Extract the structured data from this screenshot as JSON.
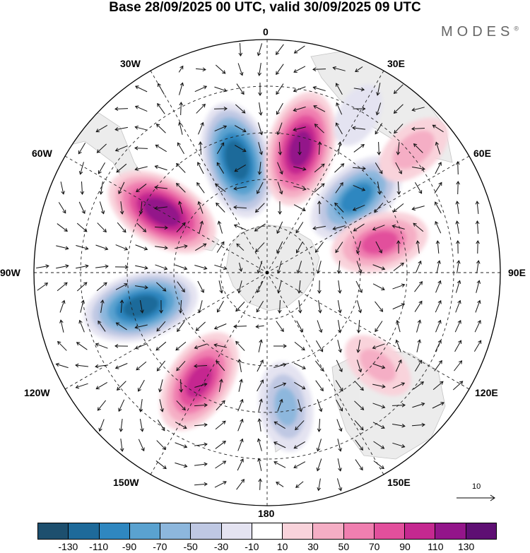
{
  "title": "Base 28/09/2025 00 UTC, valid 30/09/2025 09 UTC",
  "brand": "MODES",
  "brand_mark": "®",
  "longitude_labels": {
    "lon_0": "0",
    "lon_30e": "30E",
    "lon_60e": "60E",
    "lon_90e": "90E",
    "lon_120e": "120E",
    "lon_150e": "150E",
    "lon_180": "180",
    "lon_150w": "150W",
    "lon_120w": "120W",
    "lon_90w": "90W",
    "lon_60w": "60W",
    "lon_30w": "30W"
  },
  "vector_reference": {
    "label": "10"
  },
  "colorbar": {
    "colors": [
      "#1d4f6e",
      "#1e6a9a",
      "#2f87c0",
      "#5aa2d0",
      "#8db7dd",
      "#bfc8e3",
      "#e4e3f1",
      "#ffffff",
      "#f9d3db",
      "#f5aec5",
      "#f07fb0",
      "#e24f9c",
      "#c52890",
      "#93158a",
      "#5e0f73"
    ],
    "tick_labels": [
      "-130",
      "-110",
      "-90",
      "-70",
      "-50",
      "-30",
      "-10",
      "10",
      "30",
      "50",
      "70",
      "90",
      "110",
      "130"
    ]
  },
  "anomaly_centers": [
    {
      "lon": -15,
      "colat": 0.5,
      "value": -125
    },
    {
      "lon": 15,
      "colat": 0.55,
      "value": 120
    },
    {
      "lon": -60,
      "colat": 0.52,
      "value": 125
    },
    {
      "lon": -105,
      "colat": 0.56,
      "value": -120
    },
    {
      "lon": 50,
      "colat": 0.5,
      "value": -95
    },
    {
      "lon": 75,
      "colat": 0.5,
      "value": 75
    },
    {
      "lon": -148,
      "colat": 0.55,
      "value": 100
    },
    {
      "lon": 172,
      "colat": 0.58,
      "value": -60
    },
    {
      "lon": 50,
      "colat": 0.82,
      "value": 45
    },
    {
      "lon": 130,
      "colat": 0.62,
      "value": 40
    },
    {
      "lon": 30,
      "colat": 0.78,
      "value": -30
    }
  ]
}
